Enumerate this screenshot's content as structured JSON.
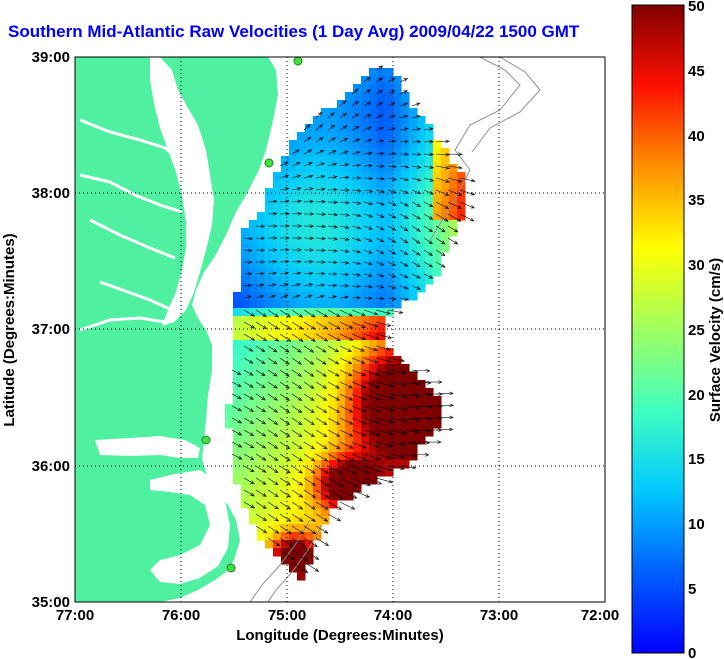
{
  "title": "Southern Mid-Atlantic Raw Velocities (1 Day Avg) 2009/04/22 1500 GMT",
  "x_axis": {
    "label": "Longitude (Degrees:Minutes)",
    "ticks": [
      "77:00",
      "76:00",
      "75:00",
      "74:00",
      "73:00",
      "72:00"
    ]
  },
  "y_axis": {
    "label": "Latitude (Degrees:Minutes)",
    "ticks": [
      "39:00",
      "38:00",
      "37:00",
      "36:00",
      "35:00"
    ]
  },
  "colorbar": {
    "label": "Surface Velocity (cm/s)",
    "ticks": [
      "50",
      "45",
      "40",
      "35",
      "30",
      "25",
      "20",
      "15",
      "10",
      "5",
      "0"
    ],
    "min": 0,
    "max": 50
  },
  "colors": {
    "land": "#4ff0a0",
    "water": "#ffffff",
    "title": "#0000ff",
    "station": "#40e040"
  }
}
